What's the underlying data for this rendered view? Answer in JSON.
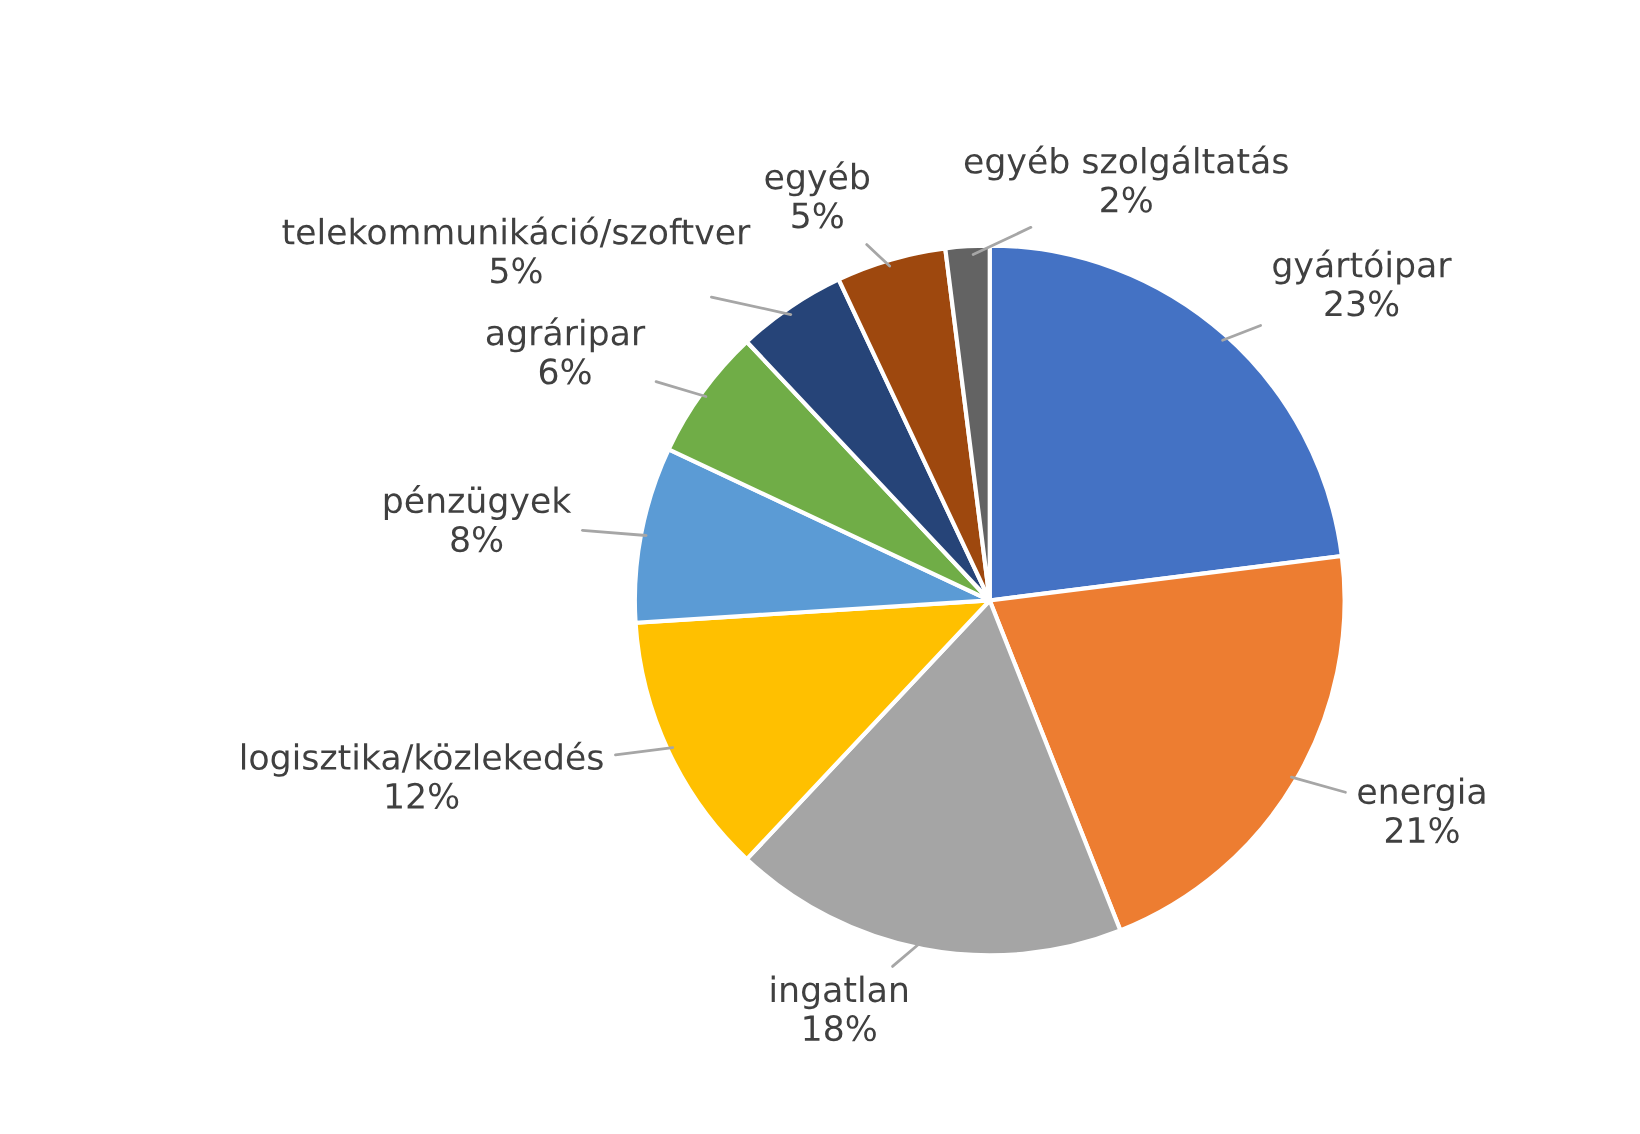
{
  "chart_data": {
    "type": "pie",
    "categories": [
      "gyártóipar",
      "energia",
      "ingatlan",
      "logisztika/közlekedés",
      "pénzügyek",
      "agráripar",
      "telekommunikáció/szoftver",
      "egyéb",
      "egyéb szolgáltatás"
    ],
    "values": [
      23,
      21,
      18,
      12,
      8,
      6,
      5,
      5,
      2
    ],
    "colors": [
      "#4472c4",
      "#ed7d31",
      "#a5a5a5",
      "#ffc000",
      "#5b9bd5",
      "#70ad47",
      "#264478",
      "#9e480e",
      "#636363"
    ],
    "value_labels": [
      "23%",
      "21%",
      "18%",
      "12%",
      "8%",
      "6%",
      "5%",
      "5%",
      "2%"
    ],
    "legend": false
  }
}
